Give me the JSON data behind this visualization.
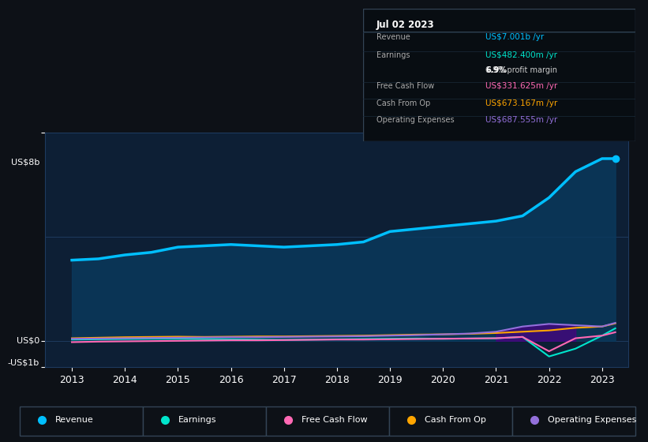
{
  "bg_color": "#0d1117",
  "plot_bg_color": "#0d1f35",
  "grid_color": "#1e3a5f",
  "title_date": "Jul 02 2023",
  "tooltip": {
    "Revenue": {
      "value": "US$7.001b /yr",
      "color": "#00bfff"
    },
    "Earnings": {
      "value": "US$482.400m /yr",
      "color": "#00e5cc"
    },
    "profit_margin": "6.9% profit margin",
    "Free Cash Flow": {
      "value": "US$331.625m /yr",
      "color": "#ff69b4"
    },
    "Cash From Op": {
      "value": "US$673.167m /yr",
      "color": "#ffa500"
    },
    "Operating Expenses": {
      "value": "US$687.555m /yr",
      "color": "#9370db"
    }
  },
  "years": [
    2013.0,
    2013.5,
    2014.0,
    2014.5,
    2015.0,
    2015.5,
    2016.0,
    2016.5,
    2017.0,
    2017.5,
    2018.0,
    2018.5,
    2019.0,
    2019.5,
    2020.0,
    2020.5,
    2021.0,
    2021.5,
    2022.0,
    2022.5,
    2023.0,
    2023.25
  ],
  "revenue": [
    3.1,
    3.15,
    3.3,
    3.4,
    3.6,
    3.65,
    3.7,
    3.65,
    3.6,
    3.65,
    3.7,
    3.8,
    4.2,
    4.3,
    4.4,
    4.5,
    4.6,
    4.8,
    5.5,
    6.5,
    7.0,
    7.001
  ],
  "earnings": [
    0.05,
    0.06,
    0.07,
    0.08,
    0.08,
    0.07,
    0.06,
    0.05,
    0.04,
    0.05,
    0.06,
    0.07,
    0.08,
    0.09,
    0.08,
    0.09,
    0.1,
    0.15,
    -0.6,
    -0.3,
    0.2,
    0.48
  ],
  "free_cash_flow": [
    -0.05,
    -0.03,
    -0.02,
    -0.01,
    0.0,
    0.01,
    0.02,
    0.02,
    0.03,
    0.04,
    0.05,
    0.05,
    0.06,
    0.07,
    0.08,
    0.09,
    0.1,
    0.15,
    -0.4,
    0.1,
    0.2,
    0.33
  ],
  "cash_from_op": [
    0.1,
    0.12,
    0.14,
    0.15,
    0.16,
    0.15,
    0.16,
    0.17,
    0.17,
    0.18,
    0.19,
    0.2,
    0.22,
    0.24,
    0.25,
    0.27,
    0.3,
    0.35,
    0.4,
    0.5,
    0.55,
    0.67
  ],
  "operating_expenses": [
    0.08,
    0.09,
    0.1,
    0.11,
    0.12,
    0.13,
    0.14,
    0.14,
    0.15,
    0.16,
    0.17,
    0.18,
    0.2,
    0.22,
    0.25,
    0.28,
    0.35,
    0.55,
    0.65,
    0.6,
    0.55,
    0.69
  ],
  "ylim": [
    -1.0,
    8.0
  ],
  "xlim": [
    2012.5,
    2023.5
  ],
  "yticks": [
    -1,
    0,
    8
  ],
  "ytick_labels": [
    "-US$1b",
    "US$0",
    "US$8b"
  ],
  "xtick_years": [
    2013,
    2014,
    2015,
    2016,
    2017,
    2018,
    2019,
    2020,
    2021,
    2022,
    2023
  ],
  "legend_items": [
    {
      "label": "Revenue",
      "color": "#00bfff"
    },
    {
      "label": "Earnings",
      "color": "#00e5cc"
    },
    {
      "label": "Free Cash Flow",
      "color": "#ff69b4"
    },
    {
      "label": "Cash From Op",
      "color": "#ffa500"
    },
    {
      "label": "Operating Expenses",
      "color": "#9370db"
    }
  ],
  "revenue_color": "#00bfff",
  "revenue_fill": "#0a3a5e",
  "earnings_color": "#00e5cc",
  "fcf_color": "#ff69b4",
  "cashop_color": "#ffa500",
  "opex_color": "#9370db",
  "opex_fill": "#4b0082"
}
